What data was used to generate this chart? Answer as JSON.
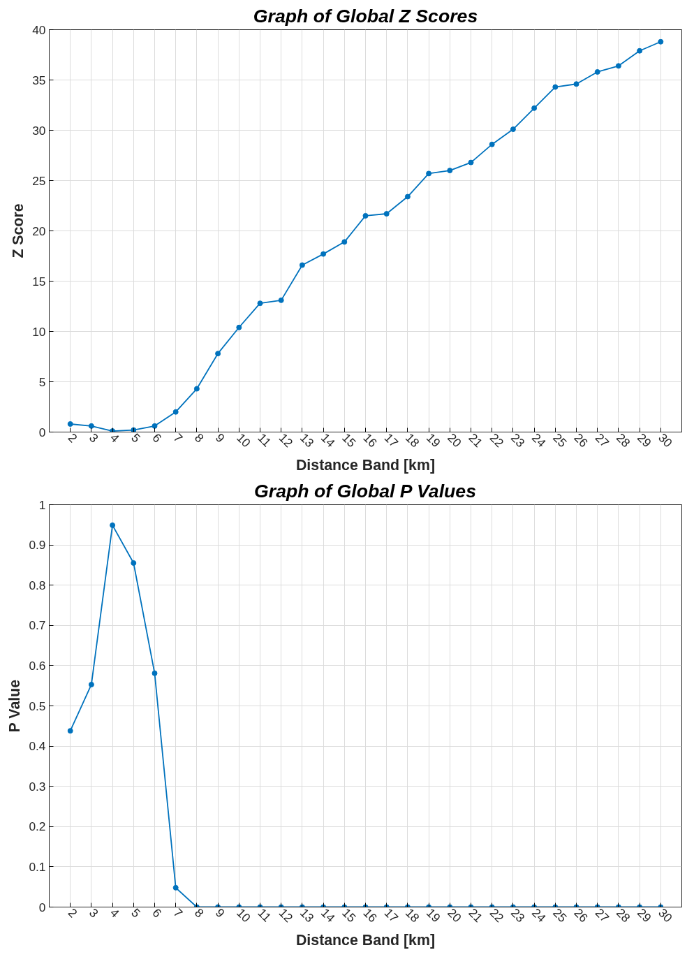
{
  "chart_data": [
    {
      "type": "line",
      "title": "Graph of Global Z Scores",
      "xlabel": "Distance Band [km]",
      "ylabel": "Z Score",
      "x": [
        2,
        3,
        4,
        5,
        6,
        7,
        8,
        9,
        10,
        11,
        12,
        13,
        14,
        15,
        16,
        17,
        18,
        19,
        20,
        21,
        22,
        23,
        24,
        25,
        26,
        27,
        28,
        29,
        30
      ],
      "values": [
        0.8,
        0.6,
        0.1,
        0.2,
        0.6,
        2.0,
        4.3,
        7.8,
        10.4,
        12.8,
        13.1,
        16.6,
        17.7,
        18.9,
        21.5,
        21.7,
        23.4,
        25.7,
        26.0,
        26.8,
        28.6,
        30.1,
        32.2,
        34.3,
        34.6,
        35.8,
        36.4,
        37.9,
        38.8
      ],
      "color": "#0072bd",
      "marker": "circle",
      "line_style": "solid",
      "grid": true,
      "xlim": [
        1,
        31
      ],
      "xticks": [
        2,
        3,
        4,
        5,
        6,
        7,
        8,
        9,
        10,
        11,
        12,
        13,
        14,
        15,
        16,
        17,
        18,
        19,
        20,
        21,
        22,
        23,
        24,
        25,
        26,
        27,
        28,
        29,
        30
      ],
      "ylim": [
        0,
        40
      ],
      "yticks": [
        0,
        5,
        10,
        15,
        20,
        25,
        30,
        35,
        40
      ]
    },
    {
      "type": "line",
      "title": "Graph of Global P Values",
      "xlabel": "Distance Band [km]",
      "ylabel": "P Value",
      "x": [
        2,
        3,
        4,
        5,
        6,
        7,
        8,
        9,
        10,
        11,
        12,
        13,
        14,
        15,
        16,
        17,
        18,
        19,
        20,
        21,
        22,
        23,
        24,
        25,
        26,
        27,
        28,
        29,
        30
      ],
      "values": [
        0.438,
        0.553,
        0.949,
        0.855,
        0.581,
        0.048,
        0,
        0,
        0,
        0,
        0,
        0,
        0,
        0,
        0,
        0,
        0,
        0,
        0,
        0,
        0,
        0,
        0,
        0,
        0,
        0,
        0,
        0,
        0
      ],
      "color": "#0072bd",
      "marker": "circle",
      "line_style": "solid",
      "grid": true,
      "xlim": [
        1,
        31
      ],
      "xticks": [
        2,
        3,
        4,
        5,
        6,
        7,
        8,
        9,
        10,
        11,
        12,
        13,
        14,
        15,
        16,
        17,
        18,
        19,
        20,
        21,
        22,
        23,
        24,
        25,
        26,
        27,
        28,
        29,
        30
      ],
      "ylim": [
        0,
        1
      ],
      "yticks": [
        0,
        0.1,
        0.2,
        0.3,
        0.4,
        0.5,
        0.6,
        0.7,
        0.8,
        0.9,
        1
      ]
    }
  ]
}
